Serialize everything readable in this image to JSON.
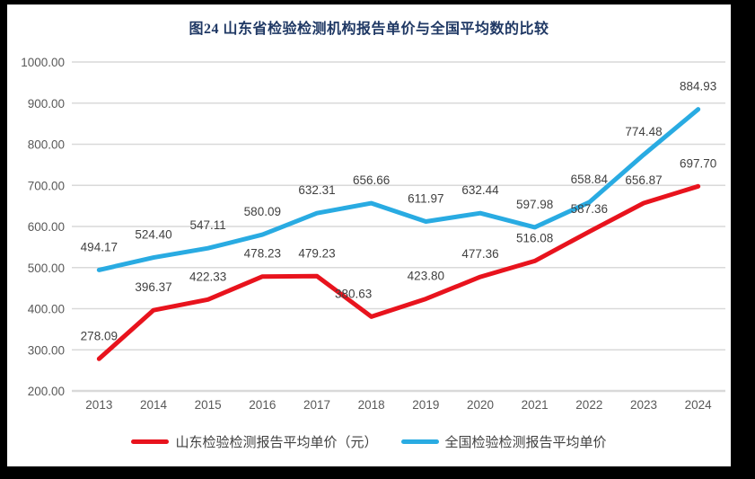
{
  "title": "图24  山东省检验检测机构报告单价与全国平均数的比较",
  "chart_data": {
    "type": "line",
    "categories": [
      "2013",
      "2014",
      "2015",
      "2016",
      "2017",
      "2018",
      "2019",
      "2020",
      "2021",
      "2022",
      "2023",
      "2024"
    ],
    "series": [
      {
        "name": "山东检验检测报告平均单价（元）",
        "color": "#e8131d",
        "values": [
          278.09,
          396.37,
          422.33,
          478.23,
          479.23,
          380.63,
          423.8,
          477.36,
          516.08,
          587.36,
          656.87,
          697.7
        ]
      },
      {
        "name": "全国检验检测报告平均单价",
        "color": "#29abe2",
        "values": [
          494.17,
          524.4,
          547.11,
          580.09,
          632.31,
          656.66,
          611.97,
          632.44,
          597.98,
          658.84,
          774.48,
          884.93
        ]
      }
    ],
    "ylim": [
      200,
      1000
    ],
    "ytick_step": 100,
    "ytick_format_decimals": 2,
    "grid": true,
    "legend_position": "bottom",
    "data_labels": true,
    "label_offsets": {
      "0-5": {
        "dx": -20,
        "dy": 0
      }
    },
    "grid_color": "#d9d9d9",
    "tick_label_color": "#595959",
    "data_label_color": "#404040",
    "title_color": "#1f3864"
  }
}
